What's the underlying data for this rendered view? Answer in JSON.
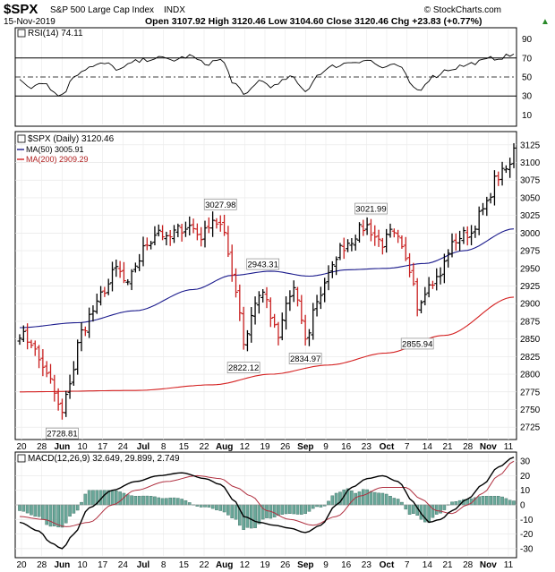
{
  "header": {
    "symbol": "$SPX",
    "name": "S&P 500 Large Cap Index",
    "exchange": "INDX",
    "date": "15-Nov-2019",
    "source": "© StockCharts.com",
    "ohlc": "Open 3107.92  High 3120.46  Low 3104.60  Close 3120.46  Chg +23.83 (+0.77%)",
    "ohlc_arrow": "▲"
  },
  "rsi": {
    "label": "RSI(14) 74.11",
    "levels": [
      "90",
      "70",
      "50",
      "30",
      "10"
    ],
    "color": "#000000"
  },
  "price": {
    "label": "$SPX (Daily) 3120.46",
    "ma50_label": "MA(50) 3005.91",
    "ma200_label": "MA(200) 2909.29",
    "ma50_color": "#1a1a8c",
    "ma200_color": "#d42020",
    "y_ticks": [
      "3125",
      "3100",
      "3075",
      "3050",
      "3025",
      "3000",
      "2975",
      "2950",
      "2925",
      "2900",
      "2875",
      "2850",
      "2825",
      "2800",
      "2775",
      "2750",
      "2725"
    ],
    "annotations": [
      "3027.98",
      "2943.31",
      "3021.99",
      "2822.12",
      "2834.97",
      "2855.94",
      "2728.81"
    ]
  },
  "macd": {
    "label": "MACD(12,26,9) 32.649, 29.899, 2.749",
    "y_ticks": [
      "30",
      "20",
      "10",
      "0",
      "-10",
      "-20",
      "-30"
    ],
    "hist_color": "#6aa89a",
    "signal_color": "#b03040"
  },
  "x_labels": [
    "20",
    "28",
    "Jun",
    "10",
    "17",
    "24",
    "Jul",
    "8",
    "15",
    "22",
    "Aug",
    "12",
    "19",
    "26",
    "Sep",
    "9",
    "16",
    "23",
    "Oct",
    "7",
    "14",
    "21",
    "28",
    "Nov",
    "11"
  ],
  "chart_data": [
    {
      "type": "line",
      "title": "RSI(14) 74.11",
      "ylim": [
        0,
        100
      ],
      "levels": [
        30,
        50,
        70
      ],
      "x": [
        "2019-05-17",
        "2019-06-03",
        "2019-07-15",
        "2019-08-05",
        "2019-09-12",
        "2019-10-02",
        "2019-11-15"
      ],
      "series": [
        {
          "name": "RSI(14)",
          "values": [
            48,
            30,
            72,
            30,
            68,
            36,
            74.11
          ]
        }
      ]
    },
    {
      "type": "line",
      "title": "$SPX (Daily) 3120.46",
      "ylim": [
        2710,
        3140
      ],
      "x": [
        "2019-05-17",
        "2019-06-03",
        "2019-07-26",
        "2019-08-05",
        "2019-08-26",
        "2019-09-12",
        "2019-10-03",
        "2019-11-15"
      ],
      "series": [
        {
          "name": "$SPX",
          "values": [
            2860,
            2744,
            3025,
            2844,
            2847,
            3010,
            2910,
            3120.46
          ]
        },
        {
          "name": "MA(50) 3005.91",
          "values": [
            2866,
            2874,
            2936,
            2946,
            2939,
            2950,
            2959,
            3005.91
          ]
        },
        {
          "name": "MA(200) 2909.29",
          "values": [
            2775,
            2775,
            2790,
            2800,
            2813,
            2837,
            2862,
            2909.29
          ]
        }
      ],
      "annotations": [
        {
          "x": "2019-07-26",
          "y": 3027.98,
          "text": "3027.98"
        },
        {
          "x": "2019-08-12",
          "y": 2943.31,
          "text": "2943.31"
        },
        {
          "x": "2019-09-19",
          "y": 3021.99,
          "text": "3021.99"
        },
        {
          "x": "2019-08-05",
          "y": 2822.12,
          "text": "2822.12"
        },
        {
          "x": "2019-08-26",
          "y": 2834.97,
          "text": "2834.97"
        },
        {
          "x": "2019-10-03",
          "y": 2855.94,
          "text": "2855.94"
        },
        {
          "x": "2019-06-03",
          "y": 2728.81,
          "text": "2728.81"
        }
      ]
    },
    {
      "type": "line",
      "title": "MACD(12,26,9) 32.649, 29.899, 2.749",
      "ylim": [
        -35,
        35
      ],
      "x": [
        "2019-05-17",
        "2019-06-03",
        "2019-07-15",
        "2019-08-05",
        "2019-08-26",
        "2019-09-12",
        "2019-10-03",
        "2019-11-15"
      ],
      "series": [
        {
          "name": "MACD",
          "values": [
            -12,
            -30,
            22,
            2,
            -19,
            20,
            -12,
            32.649
          ]
        },
        {
          "name": "Signal",
          "values": [
            -8,
            -15,
            20,
            10,
            -10,
            12,
            -2,
            29.899
          ]
        },
        {
          "name": "Histogram",
          "values": [
            -4,
            -12,
            4,
            -8,
            -6,
            8,
            -8,
            2.749
          ]
        }
      ]
    }
  ]
}
